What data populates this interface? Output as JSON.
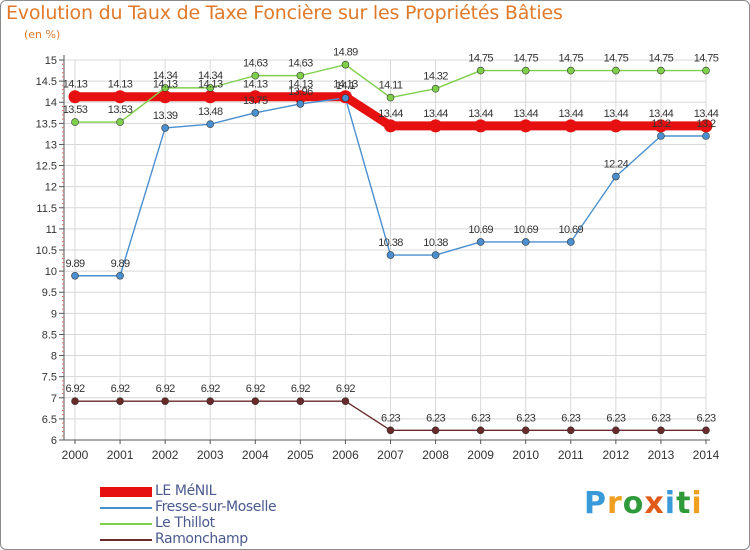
{
  "chart_data": {
    "type": "line",
    "title": "Evolution du Taux de Taxe Foncière sur les Propriétés Bâties",
    "ylabel": "(en %)",
    "xlabel": "",
    "ylim": [
      6,
      15
    ],
    "yticks": [
      "6",
      "6.5",
      "7",
      "7.5",
      "8",
      "8.5",
      "9",
      "9.5",
      "10",
      "10.5",
      "11",
      "11.5",
      "12",
      "12.5",
      "13",
      "13.5",
      "14",
      "14.5",
      "15"
    ],
    "categories": [
      "2000",
      "2001",
      "2002",
      "2003",
      "2004",
      "2005",
      "2006",
      "2007",
      "2008",
      "2009",
      "2010",
      "2011",
      "2012",
      "2013",
      "2014"
    ],
    "series": [
      {
        "name": "LE MéNIL",
        "color": "#e61010",
        "values": [
          14.13,
          14.13,
          14.13,
          14.13,
          14.13,
          14.13,
          14.13,
          13.44,
          13.44,
          13.44,
          13.44,
          13.44,
          13.44,
          13.44,
          13.44
        ],
        "labels": [
          "14.13",
          "14.13",
          "14.13",
          "14.13",
          "14.13",
          "14.13",
          "14.13",
          "13.44",
          "13.44",
          "13.44",
          "13.44",
          "13.44",
          "13.44",
          "13.44",
          "13.44"
        ]
      },
      {
        "name": "Fresse-sur-Moselle",
        "color": "#4a90d0",
        "values": [
          9.89,
          9.89,
          13.39,
          13.48,
          13.75,
          13.96,
          14.1,
          10.38,
          10.38,
          10.69,
          10.69,
          10.69,
          12.24,
          13.2,
          13.2
        ],
        "labels": [
          "9.89",
          "9.89",
          "13.39",
          "13.48",
          "13.75",
          "13.96",
          "14.1",
          "10.38",
          "10.38",
          "10.69",
          "10.69",
          "10.69",
          "12.24",
          "13.2",
          "13.2"
        ]
      },
      {
        "name": "Le Thillot",
        "color": "#7ed04a",
        "values": [
          13.53,
          13.53,
          14.34,
          14.34,
          14.63,
          14.63,
          14.89,
          14.11,
          14.32,
          14.75,
          14.75,
          14.75,
          14.75,
          14.75,
          14.75
        ],
        "labels": [
          "13.53",
          "13.53",
          "14.34",
          "14.34",
          "14.63",
          "14.63",
          "14.89",
          "14.11",
          "14.32",
          "14.75",
          "14.75",
          "14.75",
          "14.75",
          "14.75",
          "14.75"
        ]
      },
      {
        "name": "Ramonchamp",
        "color": "#6b2a2a",
        "values": [
          6.92,
          6.92,
          6.92,
          6.92,
          6.92,
          6.92,
          6.92,
          6.23,
          6.23,
          6.23,
          6.23,
          6.23,
          6.23,
          6.23,
          6.23
        ],
        "labels": [
          "6.92",
          "6.92",
          "6.92",
          "6.92",
          "6.92",
          "6.92",
          "6.92",
          "6.23",
          "6.23",
          "6.23",
          "6.23",
          "6.23",
          "6.23",
          "6.23",
          "6.23"
        ]
      }
    ],
    "legend_position": "bottom-left"
  },
  "legend": {
    "items": [
      {
        "label": "LE MéNIL",
        "color": "#e61010"
      },
      {
        "label": "Fresse-sur-Moselle",
        "color": "#4a90d0"
      },
      {
        "label": "Le Thillot",
        "color": "#7ed04a"
      },
      {
        "label": "Ramonchamp",
        "color": "#6b2a2a"
      }
    ]
  },
  "logo": {
    "letters": [
      "P",
      "r",
      "o",
      "x",
      "i",
      "t",
      "i"
    ],
    "colors": [
      "#3a9ad9",
      "#f0a020",
      "#2e9a3a",
      "#e05a1a",
      "#3a9ad9",
      "#2e9a3a",
      "#f0a020"
    ]
  }
}
